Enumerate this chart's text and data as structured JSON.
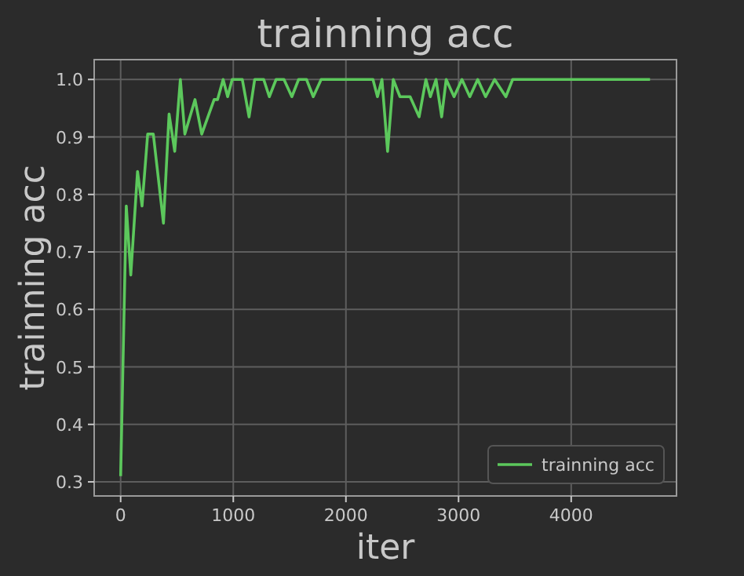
{
  "chart_data": {
    "type": "line",
    "title": "trainning acc",
    "xlabel": "iter",
    "ylabel": "trainning acc",
    "x": [
      0,
      50,
      90,
      150,
      190,
      240,
      290,
      380,
      430,
      480,
      530,
      570,
      660,
      720,
      830,
      860,
      910,
      950,
      990,
      1080,
      1140,
      1190,
      1270,
      1320,
      1380,
      1450,
      1520,
      1580,
      1650,
      1710,
      1780,
      2240,
      2280,
      2320,
      2370,
      2420,
      2480,
      2570,
      2650,
      2710,
      2750,
      2800,
      2850,
      2890,
      2960,
      3030,
      3100,
      3170,
      3240,
      3320,
      3420,
      3480,
      4700
    ],
    "series": [
      {
        "name": "trainning acc",
        "color": "#5cc85c",
        "values": [
          0.31,
          0.78,
          0.66,
          0.84,
          0.78,
          0.905,
          0.905,
          0.75,
          0.94,
          0.875,
          1.0,
          0.905,
          0.965,
          0.905,
          0.965,
          0.965,
          1.0,
          0.97,
          1.0,
          1.0,
          0.935,
          1.0,
          1.0,
          0.97,
          1.0,
          1.0,
          0.97,
          1.0,
          1.0,
          0.97,
          1.0,
          1.0,
          0.97,
          1.0,
          0.875,
          1.0,
          0.97,
          0.97,
          0.935,
          1.0,
          0.97,
          1.0,
          0.935,
          1.0,
          0.97,
          1.0,
          0.97,
          1.0,
          0.97,
          1.0,
          0.97,
          1.0,
          1.0
        ]
      }
    ],
    "xlim": [
      -235,
      4935
    ],
    "ylim": [
      0.2755,
      1.0345
    ],
    "xticks": [
      0,
      1000,
      2000,
      3000,
      4000
    ],
    "yticks": [
      {
        "value": 0.3,
        "label": "0.3"
      },
      {
        "value": 0.4,
        "label": "0.4"
      },
      {
        "value": 0.5,
        "label": "0.5"
      },
      {
        "value": 0.6,
        "label": "0.6"
      },
      {
        "value": 0.7,
        "label": "0.7"
      },
      {
        "value": 0.8,
        "label": "0.8"
      },
      {
        "value": 0.9,
        "label": "0.9"
      },
      {
        "value": 1.0,
        "label": "1.0"
      }
    ],
    "grid": true,
    "legend": "bottom right",
    "line_style": "solid"
  }
}
